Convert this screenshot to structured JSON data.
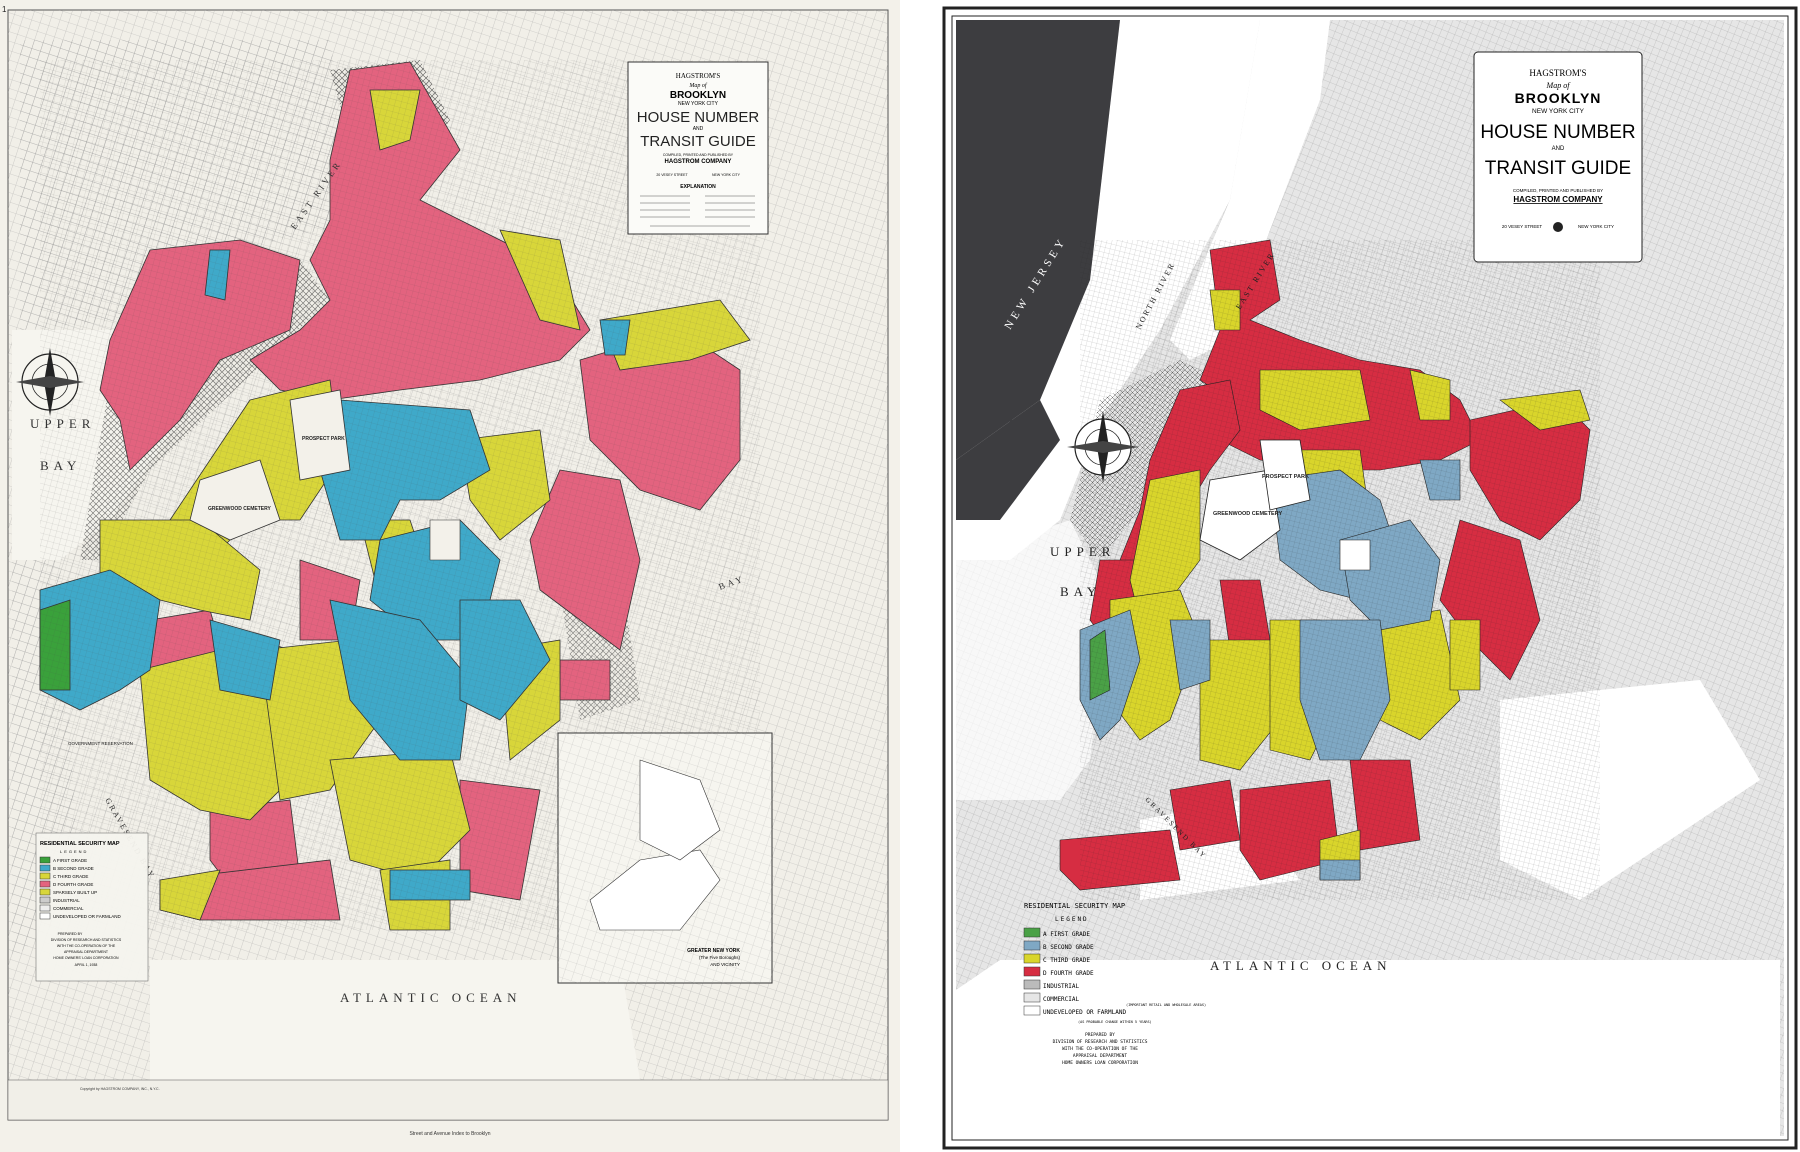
{
  "left_map": {
    "corner_number": "1",
    "title": {
      "publisher": "HAGSTROM'S",
      "map_of": "Map of",
      "city": "BROOKLYN",
      "subcity": "NEW YORK CITY",
      "line1": "HOUSE NUMBER",
      "and": "AND",
      "line2": "TRANSIT GUIDE",
      "compiled": "COMPILED, PRINTED AND PUBLISHED BY",
      "company": "HAGSTROM COMPANY",
      "address": "20 VESEY STREET",
      "city_addr": "NEW YORK CITY",
      "explanation": "EXPLANATION"
    },
    "water_labels": {
      "upper_bay": "UPPER",
      "bay": "BAY",
      "atlantic": "ATLANTIC OCEAN",
      "gravesend": "GRAVESEND BAY",
      "east_river": "EAST RIVER",
      "jamaica_bay": "BAY"
    },
    "place_labels": {
      "greenwood": "GREENWOOD CEMETERY",
      "prospect": "PROSPECT PARK",
      "government": "GOVERNMENT RESERVATION"
    },
    "legend": {
      "title": "RESIDENTIAL SECURITY MAP",
      "subtitle": "LEGEND",
      "items": [
        {
          "label": "A FIRST GRADE",
          "color": "#3aa13b"
        },
        {
          "label": "B SECOND GRADE",
          "color": "#3fa9c9"
        },
        {
          "label": "C THIRD GRADE",
          "color": "#d8d63a"
        },
        {
          "label": "D FOURTH GRADE",
          "color": "#e3637f"
        },
        {
          "label": "SPARSELY BUILT UP",
          "color": "#d8d63a"
        },
        {
          "label": "INDUSTRIAL",
          "color": "#cccccc"
        },
        {
          "label": "COMMERCIAL",
          "color": "#eeeeee"
        },
        {
          "label": "UNDEVELOPED OR FARMLAND",
          "color": "#ffffff"
        }
      ],
      "prepared": "PREPARED BY",
      "division": "DIVISION OF RESEARCH AND STATISTICS",
      "with": "WITH THE CO-OPERATION OF THE",
      "appraisal": "APPRAISAL DEPARTMENT",
      "holc": "HOME OWNERS' LOAN CORPORATION",
      "date": "APRIL 1, 1938"
    },
    "inset": {
      "title": "GREATER NEW YORK",
      "subtitle": "(The Five Boroughs)",
      "and": "AND VICINITY"
    },
    "bottom_text": "Street and Avenue Index to Brooklyn",
    "copyright": "Copyright by HAGSTROM COMPANY, INC., N.Y.C."
  },
  "right_map": {
    "title": {
      "publisher": "HAGSTROM'S",
      "map_of": "Map of",
      "city": "BROOKLYN",
      "subcity": "NEW YORK CITY",
      "line1": "HOUSE NUMBER",
      "and": "AND",
      "line2": "TRANSIT GUIDE",
      "compiled": "COMPILED, PRINTED AND PUBLISHED BY",
      "company": "HAGSTROM COMPANY",
      "address": "20 VESEY STREET",
      "city_addr": "NEW YORK CITY"
    },
    "water_labels": {
      "new_jersey": "NEW JERSEY",
      "north_river": "NORTH RIVER",
      "east_river": "EAST RIVER",
      "upper_bay_1": "UPPER",
      "upper_bay_2": "BAY",
      "gravesend": "GRAVESEND BAY",
      "atlantic": "ATLANTIC OCEAN"
    },
    "place_labels": {
      "greenwood": "GREENWOOD CEMETERY",
      "prospect": "PROSPECT PARK"
    },
    "legend": {
      "title": "RESIDENTIAL SECURITY MAP",
      "subtitle": "LEGEND",
      "items": [
        {
          "label": "A FIRST GRADE",
          "color": "#4aa146"
        },
        {
          "label": "B SECOND GRADE",
          "color": "#7fa8c4"
        },
        {
          "label": "C THIRD GRADE",
          "color": "#d9d52b"
        },
        {
          "label": "D FOURTH GRADE",
          "color": "#d62d42"
        },
        {
          "label": "INDUSTRIAL",
          "color": "#bbbbbb"
        },
        {
          "label": "COMMERCIAL",
          "color": "#e6e6e6"
        },
        {
          "label": "UNDEVELOPED OR FARMLAND",
          "color": "#ffffff"
        }
      ],
      "commercial_note": "(IMPORTANT RETAIL AND WHOLESALE AREAS)",
      "undeveloped_note": "(AS PROBABLE CHANGE WITHIN 5 YEARS)",
      "prepared": "PREPARED BY",
      "division": "DIVISION OF RESEARCH AND STATISTICS",
      "with": "WITH THE CO-OPERATION OF THE",
      "appraisal": "APPRAISAL DEPARTMENT",
      "holc": "HOME OWNERS LOAN CORPORATION"
    }
  }
}
